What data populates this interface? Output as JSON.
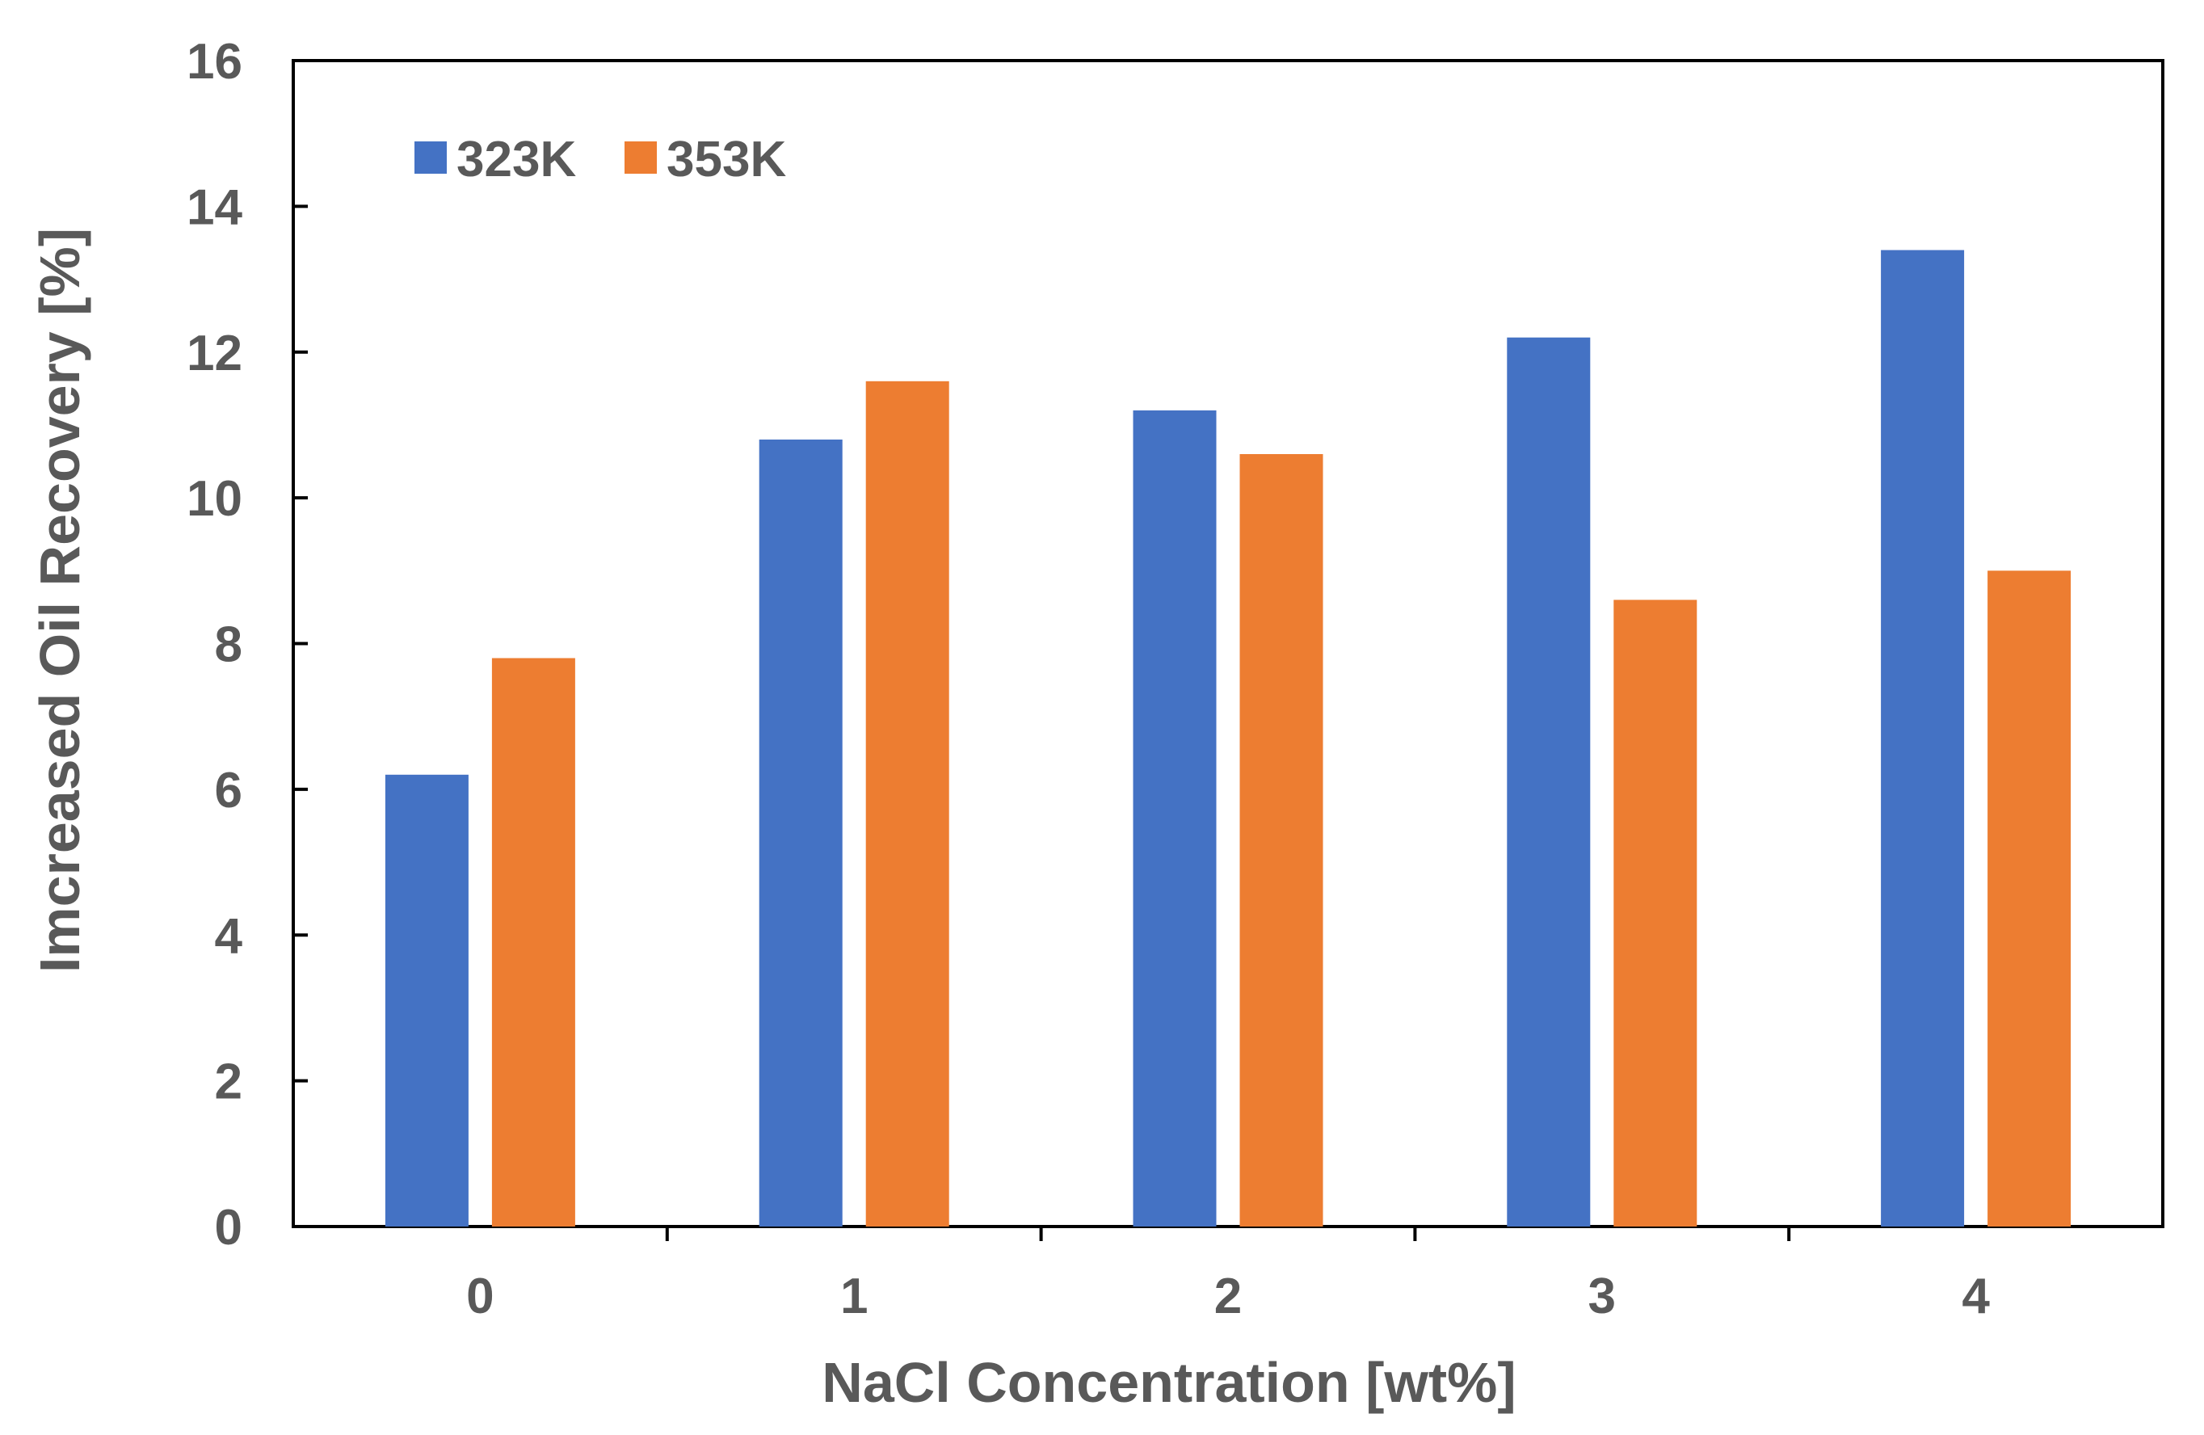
{
  "chart_data": {
    "type": "bar",
    "title": "",
    "xlabel": "NaCl Concentration [wt%]",
    "ylabel": "Imcreased Oil Recovery [%]",
    "categories": [
      "0",
      "1",
      "2",
      "3",
      "4"
    ],
    "series": [
      {
        "name": "323K",
        "color": "#4472C4",
        "values": [
          6.2,
          10.8,
          11.2,
          12.2,
          13.4
        ]
      },
      {
        "name": "353K",
        "color": "#ED7D31",
        "values": [
          7.8,
          11.6,
          10.6,
          8.6,
          9.0
        ]
      }
    ],
    "ylim": [
      0,
      16
    ],
    "yticks": [
      "0",
      "2",
      "4",
      "6",
      "8",
      "10",
      "12",
      "14",
      "16"
    ],
    "grid": false,
    "legend_position": "top-left"
  }
}
